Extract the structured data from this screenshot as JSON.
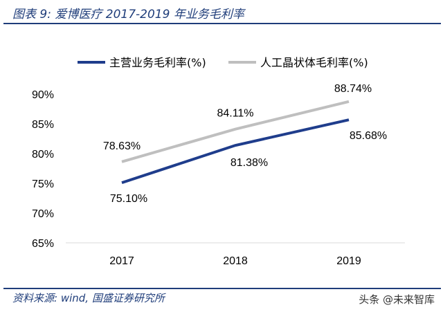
{
  "header": {
    "title": "图表 9:  爱博医疗 2017-2019 年业务毛利率"
  },
  "footer": {
    "source": "资料来源:  wind,  国盛证券研究所",
    "watermark": "头条 @未来智库"
  },
  "chart_data": {
    "type": "line",
    "categories": [
      "2017",
      "2018",
      "2019"
    ],
    "series": [
      {
        "name": "主营业务毛利率(%)",
        "values": [
          75.1,
          81.38,
          85.68
        ],
        "labels": [
          "75.10%",
          "81.38%",
          "85.68%"
        ],
        "color": "#1f3d8c"
      },
      {
        "name": "人工晶状体毛利率(%)",
        "values": [
          78.63,
          84.11,
          88.74
        ],
        "labels": [
          "78.63%",
          "84.11%",
          "88.74%"
        ],
        "color": "#bfbfbf"
      }
    ],
    "ylim": [
      65,
      90
    ],
    "yticks": [
      "65%",
      "70%",
      "75%",
      "80%",
      "85%",
      "90%"
    ],
    "grid": false,
    "legend": "top"
  }
}
